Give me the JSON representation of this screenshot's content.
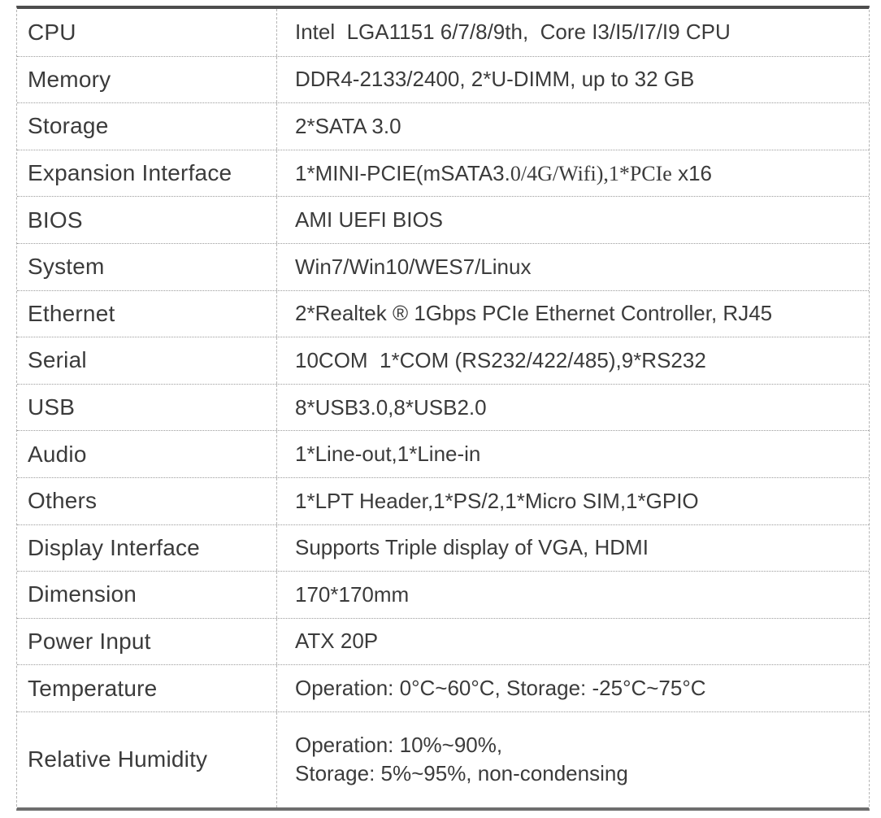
{
  "colors": {
    "text-color": "#3b3b3b",
    "dotted-line": "#9c9c9c",
    "dashed-line": "#b5b5b5",
    "top-border": "#4d4d4d",
    "bottom-border": "#6e6e6e",
    "bg": "#ffffff"
  },
  "table": {
    "rows": [
      {
        "label": "CPU",
        "value": "Intel  LGA1151 6/7/8/9th,  Core I3/I5/I7/I9 CPU"
      },
      {
        "label": "Memory",
        "value": "DDR4-2133/2400, 2*U-DIMM, up to 32 GB"
      },
      {
        "label": "Storage",
        "value": "2*SATA 3.0"
      },
      {
        "label": "Expansion Interface",
        "value_parts": [
          {
            "text": "1*MINI-PCIE(mSATA3.",
            "font": "sans"
          },
          {
            "text": "0/4G/Wifi),1*PCIe",
            "font": "serif"
          },
          {
            "text": " x16",
            "font": "sans"
          }
        ]
      },
      {
        "label": "BIOS",
        "value": "AMI UEFI BIOS"
      },
      {
        "label": "System",
        "value": "Win7/Win10/WES7/Linux"
      },
      {
        "label": "Ethernet",
        "value": "2*Realtek ® 1Gbps PCIe Ethernet Controller, RJ45"
      },
      {
        "label": "Serial",
        "value": "10COM  1*COM (RS232/422/485),9*RS232"
      },
      {
        "label": "USB",
        "value": "8*USB3.0,8*USB2.0"
      },
      {
        "label": "Audio",
        "value": "1*Line-out,1*Line-in"
      },
      {
        "label": "Others",
        "value": "1*LPT Header,1*PS/2,1*Micro SIM,1*GPIO"
      },
      {
        "label": "Display Interface",
        "value": "Supports Triple display of VGA, HDMI"
      },
      {
        "label": "Dimension",
        "value": "170*170mm"
      },
      {
        "label": "Power Input",
        "value": "ATX 20P"
      },
      {
        "label": "Temperature",
        "value": "Operation: 0°C~60°C, Storage: -25°C~75°C"
      },
      {
        "label": "Relative Humidity",
        "value": "Operation: 10%~90%,\nStorage: 5%~95%, non-condensing"
      }
    ]
  }
}
